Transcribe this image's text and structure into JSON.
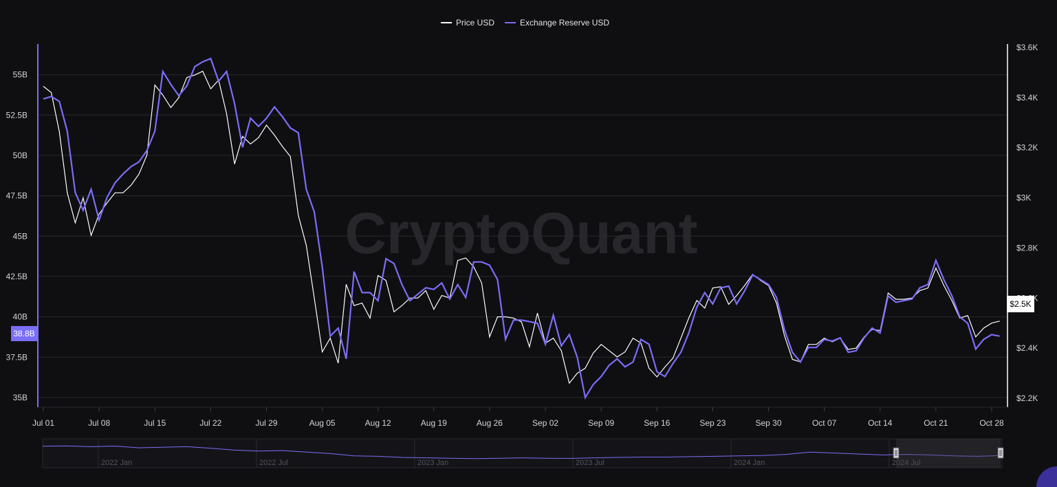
{
  "colors": {
    "background": "#0f0f12",
    "price": "#ffffff",
    "reserve": "#7b6ef6",
    "grid": "#2a2a2e"
  },
  "watermark": "CryptoQuant",
  "chart_data": {
    "type": "line",
    "legend": {
      "position": "top-center",
      "items": [
        "Price USD",
        "Exchange Reserve USD"
      ]
    },
    "left_axis": {
      "ticks": [
        "55B",
        "52.5B",
        "50B",
        "47.5B",
        "45B",
        "42.5B",
        "40B",
        "37.5B",
        "35B"
      ],
      "tick_values": [
        55,
        52.5,
        50,
        47.5,
        45,
        42.5,
        40,
        37.5,
        35
      ],
      "range": [
        34.4,
        56.9
      ],
      "unit": "B"
    },
    "right_axis": {
      "ticks": [
        "$3.6K",
        "$3.4K",
        "$3.2K",
        "$3K",
        "$2.8K",
        "$2.6K",
        "$2.4K",
        "$2.2K"
      ],
      "tick_values": [
        3600,
        3400,
        3200,
        3000,
        2800,
        2600,
        2400,
        2200
      ],
      "range": [
        2200,
        3600
      ]
    },
    "x_axis": {
      "ticks": [
        "Jul 01",
        "Jul 08",
        "Jul 15",
        "Jul 22",
        "Jul 29",
        "Aug 05",
        "Aug 12",
        "Aug 19",
        "Aug 26",
        "Sep 02",
        "Sep 09",
        "Sep 16",
        "Sep 23",
        "Sep 30",
        "Oct 07",
        "Oct 14",
        "Oct 21",
        "Oct 28"
      ],
      "tick_days": [
        0,
        7,
        14,
        21,
        28,
        35,
        42,
        49,
        56,
        63,
        70,
        77,
        84,
        91,
        98,
        105,
        112,
        119
      ],
      "range_days": [
        0,
        119
      ]
    },
    "current_labels": {
      "reserve": "38.8B",
      "price": "$2.5K"
    },
    "series": [
      {
        "name": "Price USD",
        "axis": "right",
        "points": [
          [
            0,
            3445
          ],
          [
            1,
            3420
          ],
          [
            2,
            3265
          ],
          [
            3,
            3020
          ],
          [
            4,
            2900
          ],
          [
            5,
            3000
          ],
          [
            6,
            2850
          ],
          [
            7,
            2935
          ],
          [
            8,
            2980
          ],
          [
            9,
            3020
          ],
          [
            10,
            3020
          ],
          [
            11,
            3050
          ],
          [
            12,
            3095
          ],
          [
            13,
            3170
          ],
          [
            14,
            3450
          ],
          [
            15,
            3410
          ],
          [
            16,
            3360
          ],
          [
            17,
            3400
          ],
          [
            18,
            3480
          ],
          [
            19,
            3490
          ],
          [
            20,
            3505
          ],
          [
            21,
            3435
          ],
          [
            22,
            3470
          ],
          [
            23,
            3335
          ],
          [
            24,
            3135
          ],
          [
            25,
            3245
          ],
          [
            26,
            3215
          ],
          [
            27,
            3240
          ],
          [
            28,
            3290
          ],
          [
            29,
            3250
          ],
          [
            30,
            3205
          ],
          [
            31,
            3165
          ],
          [
            32,
            2930
          ],
          [
            33,
            2810
          ],
          [
            34,
            2600
          ],
          [
            35,
            2385
          ],
          [
            36,
            2440
          ],
          [
            37,
            2340
          ],
          [
            38,
            2655
          ],
          [
            39,
            2570
          ],
          [
            40,
            2580
          ],
          [
            41,
            2520
          ],
          [
            42,
            2690
          ],
          [
            43,
            2670
          ],
          [
            44,
            2545
          ],
          [
            45,
            2570
          ],
          [
            46,
            2600
          ],
          [
            47,
            2600
          ],
          [
            48,
            2630
          ],
          [
            49,
            2555
          ],
          [
            50,
            2610
          ],
          [
            51,
            2600
          ],
          [
            52,
            2750
          ],
          [
            53,
            2760
          ],
          [
            54,
            2725
          ],
          [
            55,
            2660
          ],
          [
            56,
            2445
          ],
          [
            57,
            2525
          ],
          [
            58,
            2525
          ],
          [
            59,
            2520
          ],
          [
            60,
            2505
          ],
          [
            61,
            2405
          ],
          [
            62,
            2540
          ],
          [
            63,
            2420
          ],
          [
            64,
            2440
          ],
          [
            65,
            2390
          ],
          [
            66,
            2260
          ],
          [
            67,
            2300
          ],
          [
            68,
            2320
          ],
          [
            69,
            2380
          ],
          [
            70,
            2415
          ],
          [
            71,
            2390
          ],
          [
            72,
            2365
          ],
          [
            73,
            2385
          ],
          [
            74,
            2440
          ],
          [
            75,
            2420
          ],
          [
            76,
            2320
          ],
          [
            77,
            2285
          ],
          [
            78,
            2325
          ],
          [
            79,
            2360
          ],
          [
            80,
            2440
          ],
          [
            81,
            2520
          ],
          [
            82,
            2590
          ],
          [
            83,
            2560
          ],
          [
            84,
            2640
          ],
          [
            85,
            2645
          ],
          [
            86,
            2575
          ],
          [
            87,
            2610
          ],
          [
            88,
            2650
          ],
          [
            89,
            2695
          ],
          [
            90,
            2670
          ],
          [
            91,
            2650
          ],
          [
            92,
            2580
          ],
          [
            93,
            2450
          ],
          [
            94,
            2355
          ],
          [
            95,
            2345
          ],
          [
            96,
            2415
          ],
          [
            97,
            2415
          ],
          [
            98,
            2440
          ],
          [
            99,
            2425
          ],
          [
            100,
            2440
          ],
          [
            101,
            2395
          ],
          [
            102,
            2400
          ],
          [
            103,
            2445
          ],
          [
            104,
            2475
          ],
          [
            105,
            2470
          ],
          [
            106,
            2620
          ],
          [
            107,
            2595
          ],
          [
            108,
            2595
          ],
          [
            109,
            2600
          ],
          [
            110,
            2630
          ],
          [
            111,
            2640
          ],
          [
            112,
            2720
          ],
          [
            113,
            2650
          ],
          [
            114,
            2590
          ],
          [
            115,
            2520
          ],
          [
            116,
            2530
          ],
          [
            117,
            2445
          ],
          [
            118,
            2480
          ],
          [
            119,
            2500
          ],
          [
            120,
            2508
          ]
        ]
      },
      {
        "name": "Exchange Reserve USD",
        "axis": "left",
        "points": [
          [
            0,
            53.5
          ],
          [
            1,
            53.65
          ],
          [
            2,
            53.35
          ],
          [
            3,
            51.5
          ],
          [
            4,
            47.7
          ],
          [
            5,
            46.6
          ],
          [
            6,
            47.9
          ],
          [
            7,
            46
          ],
          [
            8,
            47.4
          ],
          [
            9,
            48.3
          ],
          [
            10,
            48.85
          ],
          [
            11,
            49.3
          ],
          [
            12,
            49.6
          ],
          [
            13,
            50.3
          ],
          [
            14,
            51.5
          ],
          [
            15,
            55.2
          ],
          [
            16,
            54.4
          ],
          [
            17,
            53.7
          ],
          [
            18,
            54.3
          ],
          [
            19,
            55.5
          ],
          [
            20,
            55.8
          ],
          [
            21,
            56.0
          ],
          [
            22,
            54.6
          ],
          [
            23,
            55.2
          ],
          [
            24,
            53.2
          ],
          [
            25,
            50.5
          ],
          [
            26,
            52.3
          ],
          [
            27,
            51.8
          ],
          [
            28,
            52.3
          ],
          [
            29,
            53.0
          ],
          [
            30,
            52.4
          ],
          [
            31,
            51.7
          ],
          [
            32,
            51.4
          ],
          [
            33,
            47.9
          ],
          [
            34,
            46.5
          ],
          [
            35,
            43.1
          ],
          [
            36,
            38.8
          ],
          [
            37,
            39.3
          ],
          [
            38,
            37.4
          ],
          [
            39,
            42.8
          ],
          [
            40,
            41.5
          ],
          [
            41,
            41.5
          ],
          [
            42,
            41.0
          ],
          [
            43,
            43.6
          ],
          [
            44,
            43.3
          ],
          [
            45,
            42.0
          ],
          [
            46,
            41.0
          ],
          [
            47,
            41.4
          ],
          [
            48,
            41.8
          ],
          [
            49,
            41.7
          ],
          [
            50,
            42.1
          ],
          [
            51,
            41.1
          ],
          [
            52,
            42.0
          ],
          [
            53,
            41.2
          ],
          [
            54,
            43.4
          ],
          [
            55,
            43.4
          ],
          [
            56,
            43.2
          ],
          [
            57,
            42.3
          ],
          [
            58,
            38.6
          ],
          [
            59,
            39.8
          ],
          [
            60,
            39.8
          ],
          [
            61,
            39.7
          ],
          [
            62,
            39.6
          ],
          [
            63,
            38.3
          ],
          [
            64,
            40.1
          ],
          [
            65,
            38.2
          ],
          [
            66,
            38.9
          ],
          [
            67,
            37.5
          ],
          [
            68,
            35.0
          ],
          [
            69,
            35.8
          ],
          [
            70,
            36.3
          ],
          [
            71,
            37.0
          ],
          [
            72,
            37.4
          ],
          [
            73,
            36.9
          ],
          [
            74,
            37.2
          ],
          [
            75,
            38.6
          ],
          [
            76,
            38.3
          ],
          [
            77,
            36.6
          ],
          [
            78,
            36.3
          ],
          [
            79,
            37.1
          ],
          [
            80,
            37.8
          ],
          [
            81,
            39.0
          ],
          [
            82,
            40.6
          ],
          [
            83,
            41.5
          ],
          [
            84,
            40.8
          ],
          [
            85,
            41.8
          ],
          [
            86,
            41.9
          ],
          [
            87,
            40.8
          ],
          [
            88,
            41.6
          ],
          [
            89,
            42.6
          ],
          [
            90,
            42.3
          ],
          [
            91,
            42.0
          ],
          [
            92,
            41.2
          ],
          [
            93,
            39.2
          ],
          [
            94,
            37.8
          ],
          [
            95,
            37.2
          ],
          [
            96,
            38.1
          ],
          [
            97,
            38.1
          ],
          [
            98,
            38.6
          ],
          [
            99,
            38.5
          ],
          [
            100,
            38.7
          ],
          [
            101,
            37.8
          ],
          [
            102,
            37.9
          ],
          [
            103,
            38.7
          ],
          [
            104,
            39.3
          ],
          [
            105,
            39.0
          ],
          [
            106,
            41.3
          ],
          [
            107,
            40.9
          ],
          [
            108,
            41.0
          ],
          [
            109,
            41.1
          ],
          [
            110,
            41.8
          ],
          [
            111,
            42.0
          ],
          [
            112,
            43.5
          ],
          [
            113,
            42.3
          ],
          [
            114,
            41.3
          ],
          [
            115,
            40.0
          ],
          [
            116,
            39.6
          ],
          [
            117,
            38.0
          ],
          [
            118,
            38.6
          ],
          [
            119,
            38.9
          ],
          [
            120,
            38.8
          ]
        ]
      }
    ]
  },
  "navigator": {
    "labels": [
      "2022 Jan",
      "2022 Jul",
      "2023 Jan",
      "2023 Jul",
      "2024 Jan",
      "2024 Jul"
    ],
    "overview": [
      0.1,
      0.08,
      0.12,
      0.09,
      0.18,
      0.15,
      0.12,
      0.2,
      0.3,
      0.35,
      0.32,
      0.4,
      0.48,
      0.6,
      0.62,
      0.68,
      0.7,
      0.72,
      0.74,
      0.72,
      0.7,
      0.72,
      0.73,
      0.7,
      0.68,
      0.66,
      0.66,
      0.64,
      0.62,
      0.6,
      0.58,
      0.52,
      0.4,
      0.45,
      0.5,
      0.55,
      0.52,
      0.55,
      0.6,
      0.62,
      0.58
    ]
  }
}
